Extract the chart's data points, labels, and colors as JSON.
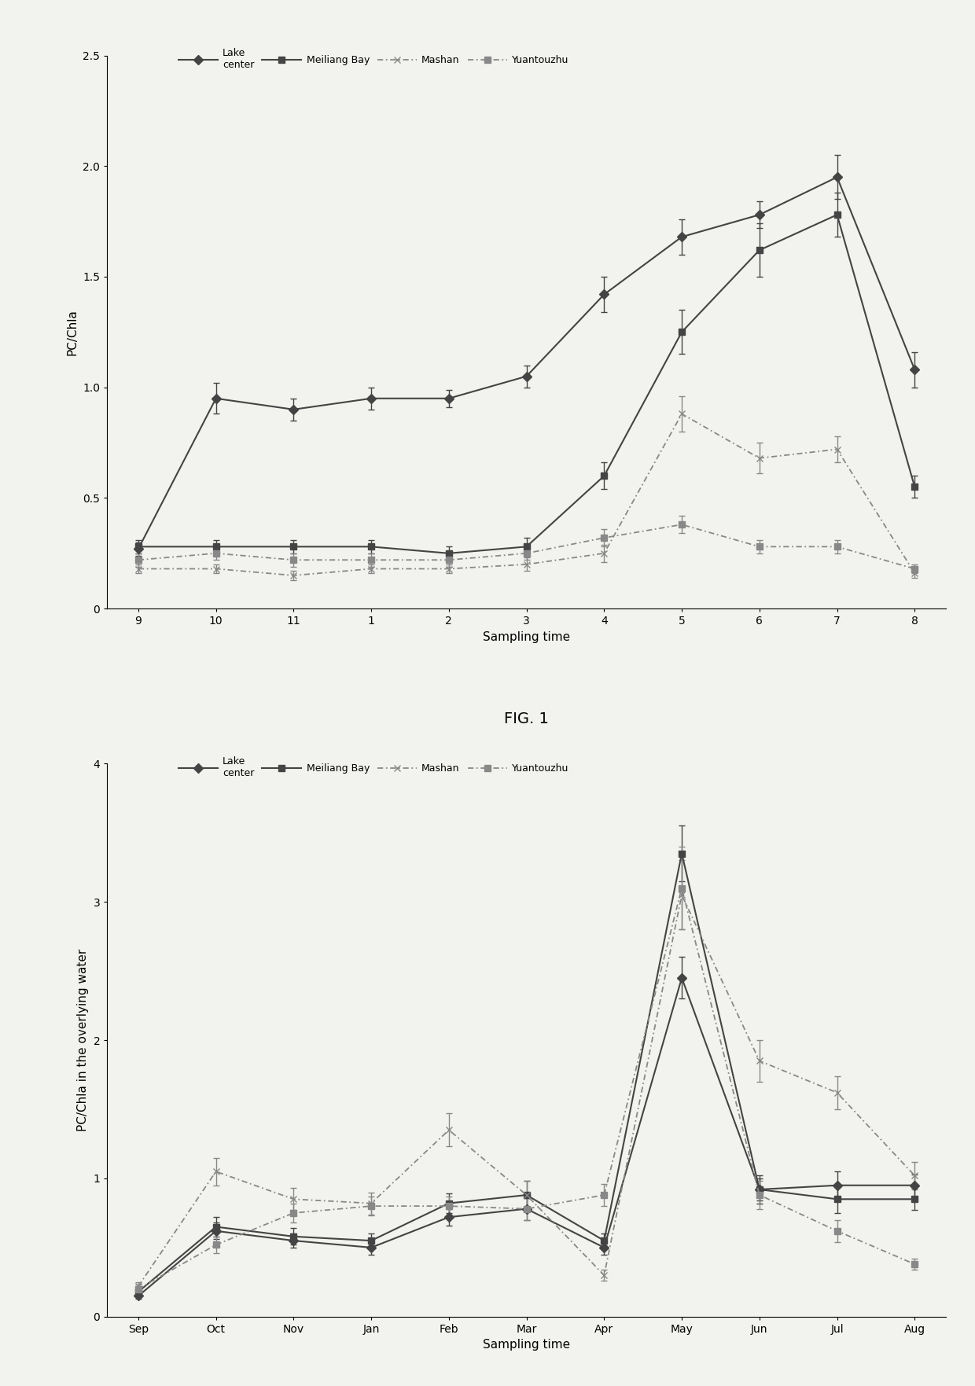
{
  "fig1": {
    "fig_label": "FIG. 1",
    "ylabel": "PC/Chla",
    "xlabel": "Sampling time",
    "xlabels": [
      "9",
      "10",
      "11",
      "1",
      "2",
      "3",
      "4",
      "5",
      "6",
      "7",
      "8"
    ],
    "ylim": [
      0,
      2.5
    ],
    "yticks": [
      0,
      0.5,
      1.0,
      1.5,
      2.0,
      2.5
    ],
    "series": [
      {
        "name": "Lake center",
        "legend": "Lake\ncenter",
        "y": [
          0.27,
          0.95,
          0.9,
          0.95,
          0.95,
          1.05,
          1.42,
          1.68,
          1.78,
          1.95,
          1.08
        ],
        "yerr": [
          0.03,
          0.07,
          0.05,
          0.05,
          0.04,
          0.05,
          0.08,
          0.08,
          0.06,
          0.1,
          0.08
        ],
        "dashed": false,
        "marker": "D",
        "color": "#444444"
      },
      {
        "name": "Meiliang Bay",
        "legend": "Meiliang Bay",
        "y": [
          0.28,
          0.28,
          0.28,
          0.28,
          0.25,
          0.28,
          0.6,
          1.25,
          1.62,
          1.78,
          0.55
        ],
        "yerr": [
          0.03,
          0.03,
          0.03,
          0.03,
          0.03,
          0.04,
          0.06,
          0.1,
          0.12,
          0.1,
          0.05
        ],
        "dashed": false,
        "marker": "s",
        "color": "#444444"
      },
      {
        "name": "Mashan",
        "legend": "Mashan",
        "y": [
          0.18,
          0.18,
          0.15,
          0.18,
          0.18,
          0.2,
          0.25,
          0.88,
          0.68,
          0.72,
          0.16
        ],
        "yerr": [
          0.02,
          0.02,
          0.02,
          0.02,
          0.02,
          0.03,
          0.04,
          0.08,
          0.07,
          0.06,
          0.02
        ],
        "dashed": true,
        "marker": "x",
        "color": "#888888"
      },
      {
        "name": "Yuantouzhu",
        "legend": "Yuantouzhu",
        "y": [
          0.22,
          0.25,
          0.22,
          0.22,
          0.22,
          0.25,
          0.32,
          0.38,
          0.28,
          0.28,
          0.18
        ],
        "yerr": [
          0.03,
          0.03,
          0.03,
          0.03,
          0.03,
          0.03,
          0.04,
          0.04,
          0.03,
          0.03,
          0.02
        ],
        "dashed": true,
        "marker": "s",
        "color": "#888888"
      }
    ]
  },
  "fig2": {
    "fig_label": "FIG. 2",
    "ylabel": "PC/Chla in the overlying water",
    "xlabel": "Sampling time",
    "xlabels": [
      "Sep",
      "Oct",
      "Nov",
      "Jan",
      "Feb",
      "Mar",
      "Apr",
      "May",
      "Jun",
      "Jul",
      "Aug"
    ],
    "ylim": [
      0,
      4
    ],
    "yticks": [
      0,
      1,
      2,
      3,
      4
    ],
    "series": [
      {
        "name": "Lake center",
        "legend": "Lake\ncenter",
        "y": [
          0.15,
          0.62,
          0.55,
          0.5,
          0.72,
          0.78,
          0.5,
          2.45,
          0.92,
          0.95,
          0.95
        ],
        "yerr": [
          0.02,
          0.06,
          0.05,
          0.05,
          0.06,
          0.08,
          0.05,
          0.15,
          0.08,
          0.1,
          0.08
        ],
        "dashed": false,
        "marker": "D",
        "color": "#444444"
      },
      {
        "name": "Meiliang Bay",
        "legend": "Meiliang Bay",
        "y": [
          0.18,
          0.65,
          0.58,
          0.55,
          0.82,
          0.88,
          0.55,
          3.35,
          0.92,
          0.85,
          0.85
        ],
        "yerr": [
          0.02,
          0.07,
          0.06,
          0.05,
          0.07,
          0.1,
          0.05,
          0.2,
          0.1,
          0.1,
          0.08
        ],
        "dashed": false,
        "marker": "s",
        "color": "#444444"
      },
      {
        "name": "Mashan",
        "legend": "Mashan",
        "y": [
          0.22,
          1.05,
          0.85,
          0.82,
          1.35,
          0.88,
          0.3,
          3.05,
          1.85,
          1.62,
          1.02
        ],
        "yerr": [
          0.03,
          0.1,
          0.08,
          0.08,
          0.12,
          0.1,
          0.04,
          0.25,
          0.15,
          0.12,
          0.1
        ],
        "dashed": true,
        "marker": "x",
        "color": "#888888"
      },
      {
        "name": "Yuantouzhu",
        "legend": "Yuantouzhu",
        "y": [
          0.2,
          0.52,
          0.75,
          0.8,
          0.8,
          0.78,
          0.88,
          3.1,
          0.88,
          0.62,
          0.38
        ],
        "yerr": [
          0.03,
          0.06,
          0.07,
          0.07,
          0.07,
          0.08,
          0.08,
          0.3,
          0.1,
          0.08,
          0.04
        ],
        "dashed": true,
        "marker": "s",
        "color": "#888888"
      }
    ]
  },
  "fig_width": 12.4,
  "fig_height": 17.63,
  "background_color": "#f2f2ee",
  "title_fontsize": 14,
  "label_fontsize": 11,
  "tick_fontsize": 10,
  "legend_fontsize": 9
}
